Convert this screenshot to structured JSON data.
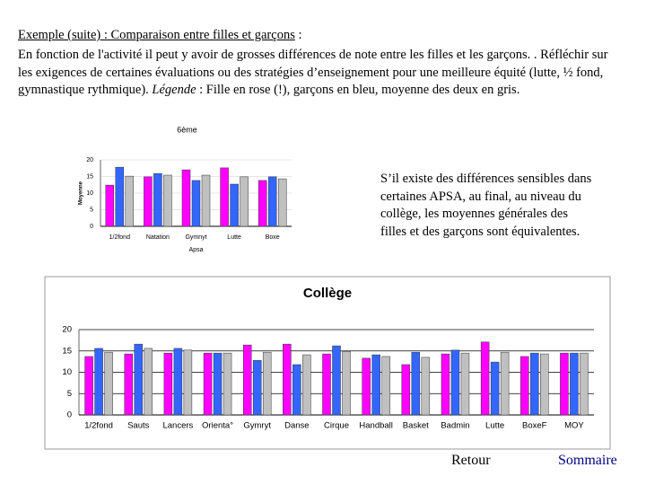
{
  "heading": {
    "title": "Exemple (suite) : Comparaison entre filles et garçons",
    "suffix": " :"
  },
  "intro": {
    "text": "En fonction de l'activité il peut y avoir de grosses différences de note entre les filles et les garçons. . Réfléchir sur les exigences de certaines évaluations ou des stratégies d’enseignement pour une meilleure équité (lutte, ½ fond, gymnastique rythmique). ",
    "legend_label": "Légende",
    "legend_text": " : Fille en rose (!), garçons en bleu, moyenne des deux en gris."
  },
  "note": "S’il existe des différences sensibles dans certaines APSA, au final, au niveau du collège, les moyennes générales des filles et des garçons sont équivalentes.",
  "nav": {
    "back": "Retour",
    "summary": "Sommaire"
  },
  "chart_data": [
    {
      "type": "bar",
      "title": "6ème",
      "x_label": "Apsa",
      "y_label": "Moyenne",
      "categories": [
        "1/2fond",
        "Natation",
        "Gymnyt",
        "Lutte",
        "Boxe"
      ],
      "series": [
        {
          "color": "#ff00ff",
          "values": [
            12.4,
            14.9,
            17,
            17.6,
            13.8
          ]
        },
        {
          "color": "#3366ff",
          "values": [
            17.8,
            15.9,
            13.8,
            12.7,
            14.9
          ]
        },
        {
          "color": "#c0c0c0",
          "values": [
            15.1,
            15.4,
            15.4,
            14.9,
            14.3
          ]
        }
      ],
      "ylim": [
        0,
        20
      ],
      "yticks": [
        0,
        5,
        10,
        15,
        20
      ],
      "grid": true
    },
    {
      "type": "bar",
      "title": "Collège",
      "categories": [
        "1/2fond",
        "Sauts",
        "Lancers",
        "Orienta°",
        "Gymryt",
        "Danse",
        "Cirque",
        "Handball",
        "Basket",
        "Badmin",
        "Lutte",
        "BoxeF",
        "MOY"
      ],
      "series": [
        {
          "color": "#ff00ff",
          "values": [
            13.7,
            14.3,
            14.5,
            14.5,
            16.4,
            16.6,
            14.3,
            13.3,
            11.8,
            14.3,
            17.1,
            13.7,
            14.5
          ]
        },
        {
          "color": "#3366ff",
          "values": [
            15.6,
            16.6,
            15.6,
            14.5,
            12.8,
            11.8,
            16.2,
            14.1,
            14.7,
            15.2,
            12.4,
            14.5,
            14.5
          ]
        },
        {
          "color": "#c0c0c0",
          "values": [
            14.7,
            15.6,
            15.2,
            14.5,
            14.7,
            14.1,
            14.9,
            13.7,
            13.5,
            14.5,
            14.7,
            14.3,
            14.5
          ]
        }
      ],
      "ylim": [
        0,
        20
      ],
      "yticks": [
        0,
        5,
        10,
        15,
        20
      ],
      "grid": true
    }
  ]
}
